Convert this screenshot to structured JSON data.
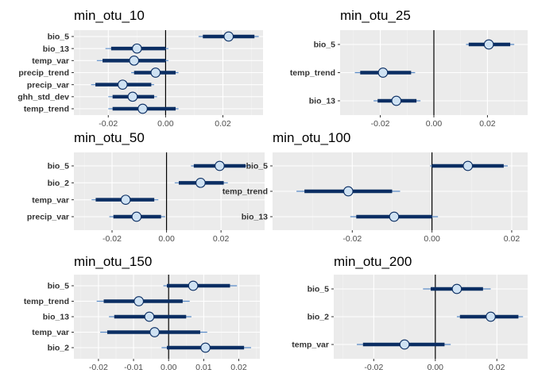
{
  "colors": {
    "panel_bg": "#EBEBEB",
    "grid_major": "#FFFFFF",
    "grid_minor": "#F4F4F4",
    "ci_thin": "#5B8DC9",
    "ci_thick": "#0B2E63",
    "point_fill": "#CFE2F3",
    "point_stroke": "#0B2E63",
    "zero_line": "#000000"
  },
  "chart_data": [
    {
      "type": "coefficient-interval",
      "title": "min_otu_10",
      "xlim": [
        -0.032,
        0.034
      ],
      "xticks": [
        -0.02,
        0.0,
        0.02
      ],
      "xtick_labels": [
        "-0.02",
        "0.00",
        "0.02"
      ],
      "grid": true,
      "items": [
        {
          "label": "bio_5",
          "est": 0.022,
          "lo50": 0.013,
          "hi50": 0.031,
          "lo95": 0.0115,
          "hi95": 0.0325
        },
        {
          "label": "bio_13",
          "est": -0.01,
          "lo50": -0.019,
          "hi50": 0.0,
          "lo95": -0.021,
          "hi95": 0.001
        },
        {
          "label": "temp_var",
          "est": -0.011,
          "lo50": -0.022,
          "hi50": 0.0,
          "lo95": -0.024,
          "hi95": 0.001
        },
        {
          "label": "precip_trend",
          "est": -0.0035,
          "lo50": -0.011,
          "hi50": 0.0035,
          "lo95": -0.012,
          "hi95": 0.0045
        },
        {
          "label": "precip_var",
          "est": -0.015,
          "lo50": -0.0245,
          "hi50": -0.005,
          "lo95": -0.026,
          "hi95": -0.004
        },
        {
          "label": "ghh_std_dev",
          "est": -0.0115,
          "lo50": -0.0185,
          "hi50": -0.004,
          "lo95": -0.02,
          "hi95": -0.003
        },
        {
          "label": "temp_trend",
          "est": -0.008,
          "lo50": -0.0185,
          "hi50": 0.0035,
          "lo95": -0.02,
          "hi95": 0.0045
        }
      ]
    },
    {
      "type": "coefficient-interval",
      "title": "min_otu_25",
      "xlim": [
        -0.035,
        0.035
      ],
      "xticks": [
        -0.02,
        0.0,
        0.02
      ],
      "xtick_labels": [
        "-0.02",
        "0.00",
        "0.02"
      ],
      "grid": true,
      "items": [
        {
          "label": "bio_5",
          "est": 0.0205,
          "lo50": 0.013,
          "hi50": 0.0285,
          "lo95": 0.012,
          "hi95": 0.03
        },
        {
          "label": "temp_trend",
          "est": -0.019,
          "lo50": -0.0275,
          "hi50": -0.0085,
          "lo95": -0.0295,
          "hi95": -0.007
        },
        {
          "label": "bio_13",
          "est": -0.014,
          "lo50": -0.021,
          "hi50": -0.0065,
          "lo95": -0.0225,
          "hi95": -0.005
        }
      ]
    },
    {
      "type": "coefficient-interval",
      "title": "min_otu_50",
      "xlim": [
        -0.034,
        0.036
      ],
      "xticks": [
        -0.02,
        0.0,
        0.02
      ],
      "xtick_labels": [
        "-0.02",
        "0.00",
        "0.02"
      ],
      "grid": true,
      "items": [
        {
          "label": "bio_5",
          "est": 0.0195,
          "lo50": 0.01,
          "hi50": 0.029,
          "lo95": 0.009,
          "hi95": 0.0305
        },
        {
          "label": "bio_2",
          "est": 0.0125,
          "lo50": 0.0045,
          "hi50": 0.021,
          "lo95": 0.003,
          "hi95": 0.0225
        },
        {
          "label": "temp_var",
          "est": -0.015,
          "lo50": -0.026,
          "hi50": -0.0045,
          "lo95": -0.0275,
          "hi95": -0.003
        },
        {
          "label": "precip_var",
          "est": -0.011,
          "lo50": -0.0195,
          "hi50": -0.002,
          "lo95": -0.021,
          "hi95": -0.0005
        }
      ]
    },
    {
      "type": "coefficient-interval",
      "title": "min_otu_100",
      "xlim": [
        -0.04,
        0.024
      ],
      "xticks": [
        -0.02,
        0.0,
        0.02
      ],
      "xtick_labels": [
        "-0.02",
        "0.00",
        "0.02"
      ],
      "grid": true,
      "items": [
        {
          "label": "bio_5",
          "est": 0.009,
          "lo50": 0.0,
          "hi50": 0.018,
          "lo95": -0.0005,
          "hi95": 0.019
        },
        {
          "label": "temp_trend",
          "est": -0.021,
          "lo50": -0.032,
          "hi50": -0.01,
          "lo95": -0.034,
          "hi95": -0.008
        },
        {
          "label": "bio_13",
          "est": -0.0095,
          "lo50": -0.019,
          "hi50": 0.0,
          "lo95": -0.0205,
          "hi95": 0.0015
        }
      ]
    },
    {
      "type": "coefficient-interval",
      "title": "min_otu_150",
      "xlim": [
        -0.027,
        0.026
      ],
      "xticks": [
        -0.02,
        -0.01,
        0.0,
        0.01,
        0.02
      ],
      "xtick_labels": [
        "-0.02",
        "-0.01",
        "0.00",
        "0.01",
        "0.02"
      ],
      "grid": true,
      "items": [
        {
          "label": "bio_5",
          "est": 0.007,
          "lo50": -0.0005,
          "hi50": 0.0175,
          "lo95": -0.0015,
          "hi95": 0.0195
        },
        {
          "label": "temp_trend",
          "est": -0.0085,
          "lo50": -0.0185,
          "hi50": 0.004,
          "lo95": -0.0205,
          "hi95": 0.006
        },
        {
          "label": "bio_13",
          "est": -0.0055,
          "lo50": -0.0155,
          "hi50": 0.005,
          "lo95": -0.017,
          "hi95": 0.0065
        },
        {
          "label": "temp_var",
          "est": -0.004,
          "lo50": -0.0175,
          "hi50": 0.009,
          "lo95": -0.0195,
          "hi95": 0.011
        },
        {
          "label": "bio_2",
          "est": 0.0105,
          "lo50": -0.0005,
          "hi50": 0.0215,
          "lo95": -0.002,
          "hi95": 0.0235
        }
      ]
    },
    {
      "type": "coefficient-interval",
      "title": "min_otu_200",
      "xlim": [
        -0.033,
        0.03
      ],
      "xticks": [
        -0.02,
        0.0,
        0.02
      ],
      "xtick_labels": [
        "-0.02",
        "0.00",
        "0.02"
      ],
      "grid": true,
      "items": [
        {
          "label": "bio_5",
          "est": 0.007,
          "lo50": -0.0015,
          "hi50": 0.0155,
          "lo95": -0.004,
          "hi95": 0.018
        },
        {
          "label": "bio_2",
          "est": 0.018,
          "lo50": 0.008,
          "hi50": 0.027,
          "lo95": 0.007,
          "hi95": 0.0285
        },
        {
          "label": "temp_var",
          "est": -0.01,
          "lo50": -0.0235,
          "hi50": 0.003,
          "lo95": -0.0255,
          "hi95": 0.005
        }
      ]
    }
  ]
}
